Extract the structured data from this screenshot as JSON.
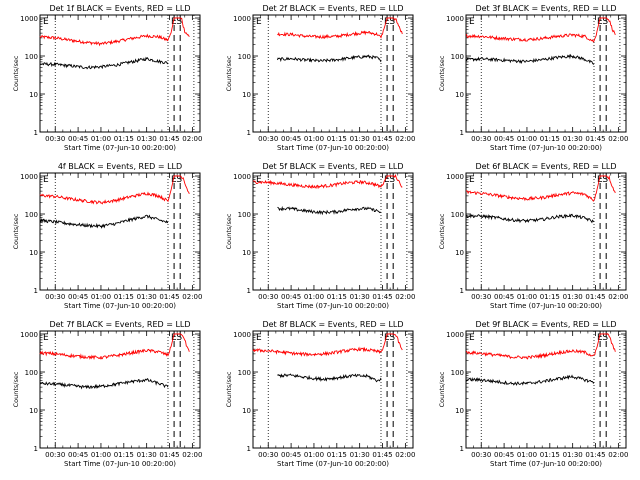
{
  "chart_data": [
    {
      "type": "line",
      "title": "Det 1f BLACK = Events, RED = LLD",
      "xlabel": "Start Time (07-Jun-10 00:20:00)",
      "ylabel": "Counts/sec",
      "x_ticks": [
        "00:30",
        "00:45",
        "01:00",
        "01:15",
        "01:30",
        "01:45",
        "02:00"
      ],
      "y_ticks": [
        "1",
        "10",
        "100",
        "1000"
      ],
      "y_scale": "log",
      "ylim": [
        1,
        1200
      ],
      "xlim_minutes_after_start": [
        0,
        105
      ],
      "markers": [
        "E",
        "S"
      ],
      "colors": {
        "events": "#000000",
        "lld": "#ff0000"
      },
      "series": [
        {
          "name": "LLD",
          "color": "#ff0000",
          "x": [
            0,
            10,
            20,
            30,
            40,
            50,
            60,
            70,
            78,
            84,
            86,
            88,
            90,
            92,
            93,
            94,
            95,
            98
          ],
          "y": [
            320,
            300,
            260,
            230,
            210,
            240,
            290,
            340,
            320,
            260,
            400,
            1000,
            1000,
            1000,
            950,
            620,
            450,
            320
          ]
        },
        {
          "name": "Events",
          "color": "#000000",
          "x": [
            0,
            10,
            20,
            30,
            40,
            50,
            60,
            70,
            78,
            84
          ],
          "y": [
            62,
            60,
            55,
            50,
            52,
            58,
            70,
            85,
            72,
            66
          ]
        }
      ]
    },
    {
      "type": "line",
      "title": "Det 2f BLACK = Events, RED = LLD",
      "xlabel": "Start Time (07-Jun-10 00:20:00)",
      "ylabel": "Counts/sec",
      "x_ticks": [
        "00:30",
        "00:45",
        "01:00",
        "01:15",
        "01:30",
        "01:45",
        "02:00"
      ],
      "y_ticks": [
        "1",
        "10",
        "100",
        "1000"
      ],
      "y_scale": "log",
      "ylim": [
        1,
        1200
      ],
      "xlim_minutes_after_start": [
        0,
        105
      ],
      "markers": [
        "E",
        "S"
      ],
      "colors": {
        "events": "#000000",
        "lld": "#ff0000"
      },
      "series": [
        {
          "name": "LLD",
          "color": "#ff0000",
          "x": [
            16,
            25,
            35,
            45,
            55,
            65,
            75,
            82,
            84,
            86,
            88,
            90,
            92,
            94,
            96,
            98
          ],
          "y": [
            380,
            370,
            330,
            320,
            330,
            380,
            420,
            370,
            300,
            520,
            1000,
            1000,
            1000,
            900,
            560,
            380
          ]
        },
        {
          "name": "Events",
          "color": "#000000",
          "x": [
            16,
            25,
            35,
            45,
            55,
            65,
            75,
            82,
            84
          ],
          "y": [
            82,
            85,
            78,
            74,
            80,
            90,
            98,
            88,
            70
          ]
        }
      ]
    },
    {
      "type": "line",
      "title": "Det 3f BLACK = Events, RED = LLD",
      "xlabel": "Start Time (07-Jun-10 00:20:00)",
      "ylabel": "Counts/sec",
      "x_ticks": [
        "00:30",
        "00:45",
        "01:00",
        "01:15",
        "01:30",
        "01:45",
        "02:00"
      ],
      "y_ticks": [
        "1",
        "10",
        "100",
        "1000"
      ],
      "y_scale": "log",
      "ylim": [
        1,
        1200
      ],
      "xlim_minutes_after_start": [
        0,
        105
      ],
      "markers": [
        "E",
        "S"
      ],
      "colors": {
        "events": "#000000",
        "lld": "#ff0000"
      },
      "series": [
        {
          "name": "LLD",
          "color": "#ff0000",
          "x": [
            0,
            10,
            20,
            30,
            40,
            50,
            60,
            70,
            78,
            84,
            86,
            88,
            90,
            92,
            94,
            96,
            98
          ],
          "y": [
            340,
            330,
            300,
            280,
            270,
            290,
            330,
            360,
            330,
            240,
            450,
            1000,
            1000,
            1000,
            880,
            520,
            360
          ]
        },
        {
          "name": "Events",
          "color": "#000000",
          "x": [
            0,
            10,
            20,
            30,
            40,
            50,
            60,
            70,
            78,
            84
          ],
          "y": [
            80,
            84,
            80,
            75,
            72,
            80,
            92,
            100,
            82,
            62
          ]
        }
      ]
    },
    {
      "type": "line",
      "title": "4f BLACK = Events, RED = LLD",
      "xlabel": "Start Time (07-Jun-10 00:20:00)",
      "ylabel": "Counts/sec",
      "x_ticks": [
        "00:30",
        "00:45",
        "01:00",
        "01:15",
        "01:30",
        "01:45",
        "02:00"
      ],
      "y_ticks": [
        "1",
        "10",
        "100",
        "1000"
      ],
      "y_scale": "log",
      "ylim": [
        1,
        1200
      ],
      "xlim_minutes_after_start": [
        0,
        105
      ],
      "markers": [
        "E",
        "S"
      ],
      "colors": {
        "events": "#000000",
        "lld": "#ff0000"
      },
      "series": [
        {
          "name": "LLD",
          "color": "#ff0000",
          "x": [
            0,
            10,
            20,
            30,
            40,
            50,
            60,
            70,
            78,
            84,
            86,
            88,
            90,
            92,
            94,
            96,
            98
          ],
          "y": [
            310,
            290,
            250,
            220,
            200,
            230,
            290,
            350,
            300,
            220,
            420,
            1000,
            1000,
            1000,
            900,
            520,
            340
          ]
        },
        {
          "name": "Events",
          "color": "#000000",
          "x": [
            0,
            10,
            20,
            30,
            40,
            50,
            60,
            70,
            78,
            84
          ],
          "y": [
            68,
            62,
            55,
            50,
            48,
            56,
            72,
            88,
            70,
            60
          ]
        }
      ]
    },
    {
      "type": "line",
      "title": "Det 5f BLACK = Events, RED = LLD",
      "xlabel": "Start Time (07-Jun-10 00:20:00)",
      "ylabel": "Counts/sec",
      "x_ticks": [
        "00:30",
        "00:45",
        "01:00",
        "01:15",
        "01:30",
        "01:45",
        "02:00"
      ],
      "y_ticks": [
        "1",
        "10",
        "100",
        "1000"
      ],
      "y_scale": "log",
      "ylim": [
        1,
        1200
      ],
      "xlim_minutes_after_start": [
        0,
        105
      ],
      "markers": [
        "E",
        "S"
      ],
      "colors": {
        "events": "#000000",
        "lld": "#ff0000"
      },
      "series": [
        {
          "name": "LLD",
          "color": "#ff0000",
          "x": [
            0,
            10,
            20,
            30,
            40,
            50,
            60,
            70,
            78,
            84,
            86,
            88,
            90,
            92,
            94,
            96,
            98
          ],
          "y": [
            700,
            680,
            620,
            560,
            520,
            560,
            650,
            700,
            640,
            520,
            700,
            1000,
            1000,
            1000,
            950,
            700,
            520
          ]
        },
        {
          "name": "Events",
          "color": "#000000",
          "x": [
            16,
            25,
            35,
            45,
            55,
            65,
            75,
            82,
            84
          ],
          "y": [
            140,
            138,
            120,
            110,
            115,
            135,
            140,
            120,
            108
          ]
        }
      ]
    },
    {
      "type": "line",
      "title": "Det 6f BLACK = Events, RED = LLD",
      "xlabel": "Start Time (07-Jun-10 00:20:00)",
      "ylabel": "Counts/sec",
      "x_ticks": [
        "00:30",
        "00:45",
        "01:00",
        "01:15",
        "01:30",
        "01:45",
        "02:00"
      ],
      "y_ticks": [
        "1",
        "10",
        "100",
        "1000"
      ],
      "y_scale": "log",
      "ylim": [
        1,
        1200
      ],
      "xlim_minutes_after_start": [
        0,
        105
      ],
      "markers": [
        "E",
        "S"
      ],
      "colors": {
        "events": "#000000",
        "lld": "#ff0000"
      },
      "series": [
        {
          "name": "LLD",
          "color": "#ff0000",
          "x": [
            0,
            10,
            20,
            30,
            40,
            50,
            60,
            70,
            78,
            84,
            86,
            88,
            90,
            92,
            94,
            96,
            98
          ],
          "y": [
            380,
            350,
            310,
            270,
            250,
            270,
            320,
            360,
            330,
            230,
            440,
            1000,
            1000,
            1000,
            900,
            540,
            360
          ]
        },
        {
          "name": "Events",
          "color": "#000000",
          "x": [
            0,
            10,
            20,
            30,
            40,
            50,
            60,
            70,
            78,
            84
          ],
          "y": [
            90,
            88,
            80,
            70,
            66,
            72,
            85,
            92,
            78,
            62
          ]
        }
      ]
    },
    {
      "type": "line",
      "title": "Det 7f BLACK = Events, RED = LLD",
      "xlabel": "Start Time (07-Jun-10 00:20:00)",
      "ylabel": "Counts/sec",
      "x_ticks": [
        "00:30",
        "00:45",
        "01:00",
        "01:15",
        "01:30",
        "01:45",
        "02:00"
      ],
      "y_ticks": [
        "1",
        "10",
        "100",
        "1000"
      ],
      "y_scale": "log",
      "ylim": [
        1,
        1200
      ],
      "xlim_minutes_after_start": [
        0,
        105
      ],
      "markers": [
        "E",
        "S"
      ],
      "colors": {
        "events": "#000000",
        "lld": "#ff0000"
      },
      "series": [
        {
          "name": "LLD",
          "color": "#ff0000",
          "x": [
            0,
            10,
            20,
            30,
            40,
            50,
            60,
            70,
            78,
            84,
            86,
            88,
            90,
            92,
            94,
            96,
            98
          ],
          "y": [
            320,
            300,
            270,
            250,
            240,
            270,
            320,
            370,
            340,
            280,
            460,
            1000,
            1000,
            1000,
            900,
            520,
            340
          ]
        },
        {
          "name": "Events",
          "color": "#000000",
          "x": [
            0,
            10,
            20,
            30,
            40,
            50,
            60,
            70,
            78,
            84
          ],
          "y": [
            50,
            48,
            44,
            40,
            42,
            48,
            56,
            62,
            50,
            40
          ]
        }
      ]
    },
    {
      "type": "line",
      "title": "Det 8f BLACK = Events, RED = LLD",
      "xlabel": "Start Time (07-Jun-10 00:20:00)",
      "ylabel": "Counts/sec",
      "x_ticks": [
        "00:30",
        "00:45",
        "01:00",
        "01:15",
        "01:30",
        "01:45",
        "02:00"
      ],
      "y_ticks": [
        "1",
        "10",
        "100",
        "1000"
      ],
      "y_scale": "log",
      "ylim": [
        1,
        1200
      ],
      "xlim_minutes_after_start": [
        0,
        105
      ],
      "markers": [
        "E",
        "S"
      ],
      "colors": {
        "events": "#000000",
        "lld": "#ff0000"
      },
      "series": [
        {
          "name": "LLD",
          "color": "#ff0000",
          "x": [
            0,
            10,
            20,
            30,
            40,
            50,
            60,
            70,
            78,
            84,
            86,
            88,
            90,
            92,
            94,
            96,
            98
          ],
          "y": [
            380,
            360,
            330,
            300,
            290,
            310,
            360,
            400,
            370,
            330,
            500,
            1000,
            1000,
            1000,
            900,
            560,
            380
          ]
        },
        {
          "name": "Events",
          "color": "#000000",
          "x": [
            16,
            25,
            35,
            45,
            55,
            65,
            75,
            82,
            84
          ],
          "y": [
            80,
            82,
            72,
            65,
            70,
            80,
            78,
            58,
            70
          ]
        }
      ]
    },
    {
      "type": "line",
      "title": "Det 9f BLACK = Events, RED = LLD",
      "xlabel": "Start Time (07-Jun-10 00:20:00)",
      "ylabel": "Counts/sec",
      "x_ticks": [
        "00:30",
        "00:45",
        "01:00",
        "01:15",
        "01:30",
        "01:45",
        "02:00"
      ],
      "y_ticks": [
        "1",
        "10",
        "100",
        "1000"
      ],
      "y_scale": "log",
      "ylim": [
        1,
        1200
      ],
      "xlim_minutes_after_start": [
        0,
        105
      ],
      "markers": [
        "E",
        "S"
      ],
      "colors": {
        "events": "#000000",
        "lld": "#ff0000"
      },
      "series": [
        {
          "name": "LLD",
          "color": "#ff0000",
          "x": [
            0,
            10,
            20,
            30,
            40,
            50,
            60,
            70,
            78,
            84,
            86,
            88,
            90,
            92,
            94,
            96,
            98
          ],
          "y": [
            330,
            310,
            280,
            250,
            240,
            270,
            320,
            360,
            330,
            260,
            450,
            1000,
            1000,
            1000,
            900,
            520,
            340
          ]
        },
        {
          "name": "Events",
          "color": "#000000",
          "x": [
            0,
            10,
            20,
            30,
            40,
            50,
            60,
            70,
            78,
            84
          ],
          "y": [
            64,
            62,
            56,
            50,
            50,
            56,
            66,
            76,
            62,
            54
          ]
        }
      ]
    }
  ]
}
